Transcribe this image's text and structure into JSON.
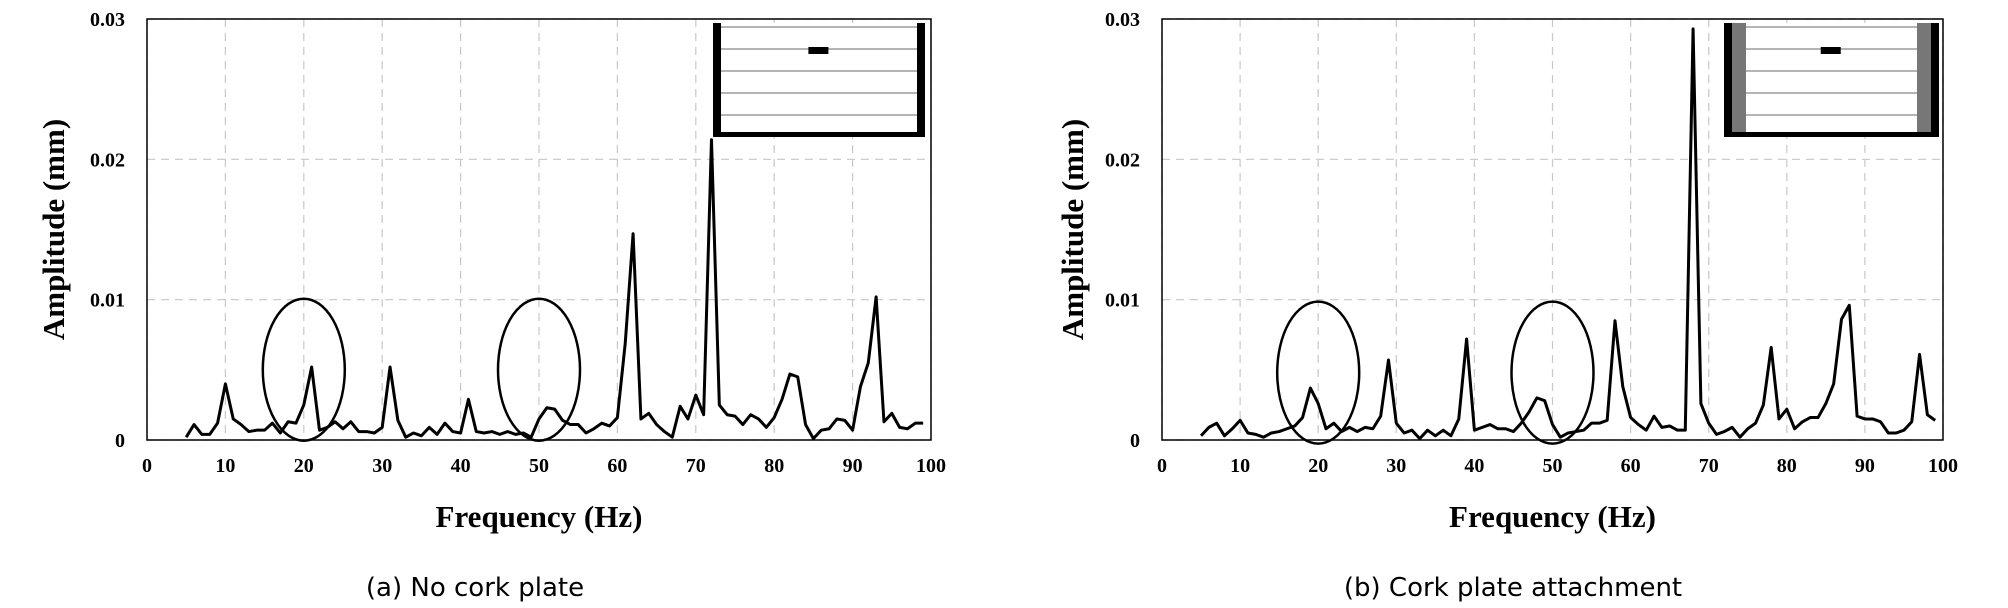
{
  "chart_data": [
    {
      "type": "line",
      "caption": "(a) No cork plate",
      "xlabel": "Frequency (Hz)",
      "ylabel": "Amplitude (mm)",
      "xlim": [
        0,
        100
      ],
      "xticks": [
        0,
        10,
        20,
        30,
        40,
        50,
        60,
        70,
        80,
        90,
        100
      ],
      "ylim": [
        0,
        0.03
      ],
      "yticks": [
        0,
        0.01,
        0.02,
        0.03
      ],
      "grid": true,
      "color": "#000000",
      "x": [
        5,
        6,
        7,
        8,
        9,
        10,
        11,
        12,
        13,
        14,
        15,
        16,
        17,
        18,
        19,
        20,
        21,
        22,
        23,
        24,
        25,
        26,
        27,
        28,
        29,
        30,
        31,
        32,
        33,
        34,
        35,
        36,
        37,
        38,
        39,
        40,
        41,
        42,
        43,
        44,
        45,
        46,
        47,
        48,
        49,
        50,
        51,
        52,
        53,
        54,
        55,
        56,
        57,
        58,
        59,
        60,
        61,
        62,
        63,
        64,
        65,
        66,
        67,
        68,
        69,
        70,
        71,
        72,
        73,
        74,
        75,
        76,
        77,
        78,
        79,
        80,
        81,
        82,
        83,
        84,
        85,
        86,
        87,
        88,
        89,
        90,
        91,
        92,
        93,
        94,
        95,
        96,
        97,
        98,
        99
      ],
      "values": [
        0.0002,
        0.0011,
        0.0004,
        0.0004,
        0.0012,
        0.004,
        0.0015,
        0.0011,
        0.0006,
        0.0007,
        0.0007,
        0.0012,
        0.0005,
        0.0013,
        0.0012,
        0.0025,
        0.0052,
        0.0007,
        0.0009,
        0.0013,
        0.0008,
        0.0013,
        0.0006,
        0.0006,
        0.0005,
        0.0009,
        0.0052,
        0.0014,
        0.0002,
        0.0005,
        0.0003,
        0.0009,
        0.0004,
        0.0012,
        0.0006,
        0.0005,
        0.0029,
        0.0006,
        0.0005,
        0.0006,
        0.0004,
        0.0006,
        0.0004,
        0.0005,
        0.0002,
        0.0015,
        0.0023,
        0.0022,
        0.0014,
        0.0011,
        0.0011,
        0.0005,
        0.0008,
        0.0012,
        0.001,
        0.0016,
        0.0069,
        0.0147,
        0.0015,
        0.0019,
        0.0011,
        0.0006,
        0.0002,
        0.0024,
        0.0015,
        0.0032,
        0.0018,
        0.0214,
        0.0025,
        0.0018,
        0.0017,
        0.0011,
        0.0018,
        0.0015,
        0.0009,
        0.0016,
        0.0029,
        0.0047,
        0.0045,
        0.0011,
        0.0001,
        0.0007,
        0.0008,
        0.0015,
        0.0014,
        0.0007,
        0.0038,
        0.0055,
        0.0102,
        0.0013,
        0.0019,
        0.0009,
        0.0008,
        0.0012,
        0.0012
      ]
    },
    {
      "type": "line",
      "caption": "(b) Cork plate attachment",
      "xlabel": "Frequency (Hz)",
      "ylabel": "Amplitude (mm)",
      "xlim": [
        0,
        100
      ],
      "xticks": [
        0,
        10,
        20,
        30,
        40,
        50,
        60,
        70,
        80,
        90,
        100
      ],
      "ylim": [
        0,
        0.03
      ],
      "yticks": [
        0,
        0.01,
        0.02,
        0.03
      ],
      "grid": true,
      "color": "#000000",
      "x": [
        5,
        6,
        7,
        8,
        9,
        10,
        11,
        12,
        13,
        14,
        15,
        16,
        17,
        18,
        19,
        20,
        21,
        22,
        23,
        24,
        25,
        26,
        27,
        28,
        29,
        30,
        31,
        32,
        33,
        34,
        35,
        36,
        37,
        38,
        39,
        40,
        41,
        42,
        43,
        44,
        45,
        46,
        47,
        48,
        49,
        50,
        51,
        52,
        53,
        54,
        55,
        56,
        57,
        58,
        59,
        60,
        61,
        62,
        63,
        64,
        65,
        66,
        67,
        68,
        69,
        70,
        71,
        72,
        73,
        74,
        75,
        76,
        77,
        78,
        79,
        80,
        81,
        82,
        83,
        84,
        85,
        86,
        87,
        88,
        89,
        90,
        91,
        92,
        93,
        94,
        95,
        96,
        97,
        98,
        99
      ],
      "values": [
        0.0003,
        0.0009,
        0.0012,
        0.0003,
        0.0008,
        0.0014,
        0.0005,
        0.0004,
        0.0002,
        0.0005,
        0.0006,
        0.0008,
        0.001,
        0.0016,
        0.0037,
        0.0026,
        0.0008,
        0.0012,
        0.0006,
        0.0009,
        0.0006,
        0.0009,
        0.0008,
        0.0017,
        0.0057,
        0.0012,
        0.0005,
        0.0007,
        0.0001,
        0.0007,
        0.0003,
        0.0007,
        0.0003,
        0.0015,
        0.0072,
        0.0007,
        0.0009,
        0.0011,
        0.0008,
        0.0008,
        0.0006,
        0.0012,
        0.002,
        0.003,
        0.0028,
        0.0011,
        0.0002,
        0.0005,
        0.0006,
        0.0007,
        0.0012,
        0.0012,
        0.0014,
        0.0085,
        0.0038,
        0.0016,
        0.0011,
        0.0007,
        0.0017,
        0.0009,
        0.001,
        0.0007,
        0.0007,
        0.0293,
        0.0026,
        0.0012,
        0.0004,
        0.0006,
        0.0009,
        0.0002,
        0.0008,
        0.0012,
        0.0025,
        0.0066,
        0.0015,
        0.0022,
        0.0008,
        0.0013,
        0.0016,
        0.0016,
        0.0026,
        0.004,
        0.0086,
        0.0096,
        0.0017,
        0.0015,
        0.0015,
        0.0013,
        0.0005,
        0.0005,
        0.0007,
        0.0013,
        0.0061,
        0.0018,
        0.0014
      ]
    }
  ]
}
